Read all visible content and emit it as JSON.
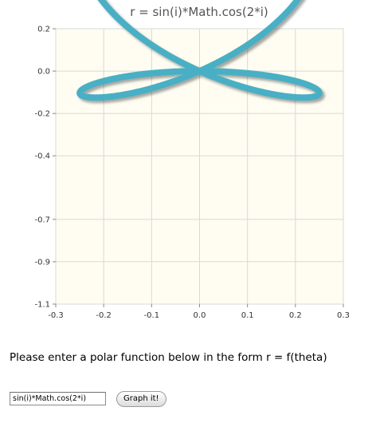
{
  "chart_data": {
    "type": "line",
    "title": "r = sin(i)*Math.cos(2*i)",
    "function": "sin(i)*Math.cos(2*i)",
    "xlim": [
      -0.3,
      0.3
    ],
    "ylim": [
      -1.1,
      0.2
    ],
    "xticks": [
      "-0.3",
      "-0.2",
      "-0.1",
      "0.0",
      "0.1",
      "0.2",
      "0.3"
    ],
    "yticks": [
      {
        "value": 0.2,
        "label": "0.2"
      },
      {
        "value": 0.0,
        "label": "0.0"
      },
      {
        "value": -0.2,
        "label": "-0.2"
      },
      {
        "value": -0.4,
        "label": "-0.4"
      },
      {
        "value": -0.7,
        "label": "-0.7"
      },
      {
        "value": -0.9,
        "label": "-0.9"
      },
      {
        "value": -1.1,
        "label": "-1.1"
      }
    ],
    "grid": true,
    "colors": {
      "line": "#4aafc4",
      "plot_background": "#fffdf2",
      "grid": "#d8d8d8"
    }
  },
  "form": {
    "prompt": "Please enter a polar function below in the form r = f(theta)",
    "input_value": "sin(i)*Math.cos(2*i)",
    "button_label": "Graph it!"
  }
}
